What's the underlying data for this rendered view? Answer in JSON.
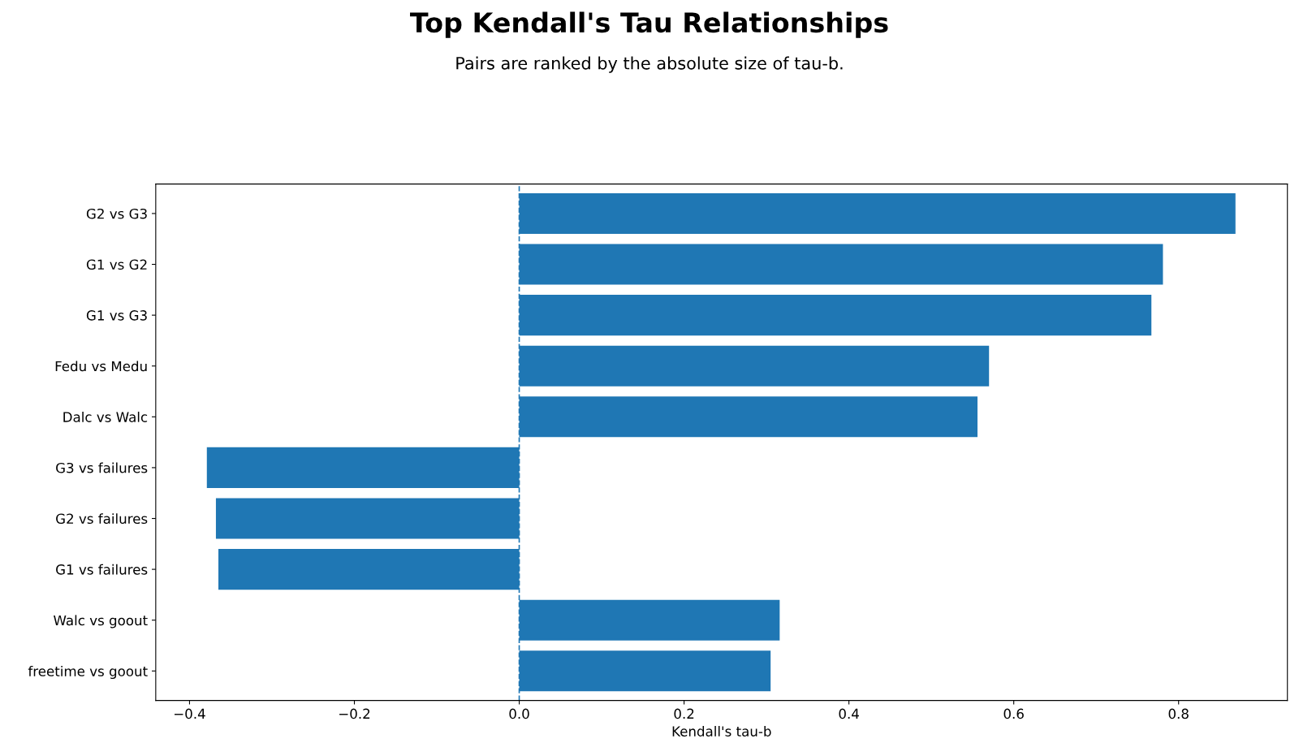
{
  "chart_data": {
    "type": "bar",
    "orientation": "horizontal",
    "title": "Top Kendall's Tau Relationships",
    "subtitle": "Pairs are ranked by the absolute size of tau-b.",
    "xlabel": "Kendall's tau-b",
    "categories": [
      "G2 vs G3",
      "G1 vs G2",
      "G1 vs G3",
      "Fedu vs Medu",
      "Dalc vs Walc",
      "G3 vs failures",
      "G2 vs failures",
      "G1 vs failures",
      "Walc vs goout",
      "freetime vs goout"
    ],
    "values": [
      0.869,
      0.781,
      0.767,
      0.57,
      0.556,
      -0.379,
      -0.368,
      -0.365,
      0.316,
      0.305
    ],
    "color": "#1f77b4",
    "xlim": [
      -0.441,
      0.932
    ],
    "xticks": [
      {
        "value": -0.4,
        "label": "−0.4"
      },
      {
        "value": -0.2,
        "label": "−0.2"
      },
      {
        "value": 0.0,
        "label": "0.0"
      },
      {
        "value": 0.2,
        "label": "0.2"
      },
      {
        "value": 0.4,
        "label": "0.4"
      },
      {
        "value": 0.6,
        "label": "0.6"
      },
      {
        "value": 0.8,
        "label": "0.8"
      }
    ],
    "ref_lines": [
      {
        "axis": "x",
        "value": 0,
        "color": "#1f77b4",
        "line_style": "dashed"
      }
    ],
    "grid": false,
    "legend": false
  }
}
